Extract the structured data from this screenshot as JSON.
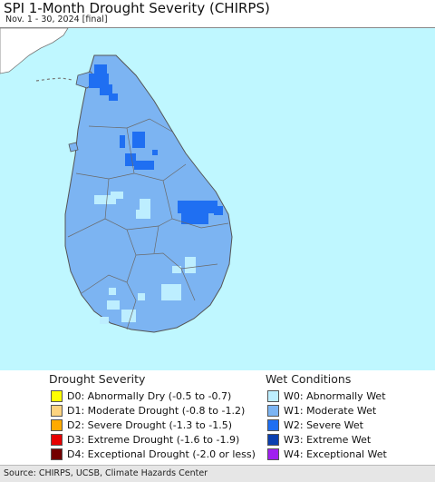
{
  "header": {
    "title": "SPI 1-Month Drought Severity (CHIRPS)",
    "subtitle": "Nov. 1 - 30, 2024 [final]"
  },
  "map": {
    "ocean_color": "#bff7ff",
    "neighbor_land_color": "#ffffff",
    "base_land_color": "#7cb4f2",
    "w0_color": "#bdeeff",
    "w2_color": "#1f6ff2",
    "border_color": "#666666"
  },
  "legend": {
    "drought": {
      "heading": "Drought Severity",
      "items": [
        {
          "label": "D0: Abnormally Dry (-0.5 to -0.7)",
          "color": "#ffff00"
        },
        {
          "label": "D1: Moderate Drought (-0.8 to -1.2)",
          "color": "#fcd37f"
        },
        {
          "label": "D2: Severe Drought (-1.3 to -1.5)",
          "color": "#ffaa00"
        },
        {
          "label": "D3: Extreme Drought (-1.6 to -1.9)",
          "color": "#e60000"
        },
        {
          "label": "D4: Exceptional Drought (-2.0 or less)",
          "color": "#730000"
        }
      ]
    },
    "wet": {
      "heading": "Wet Conditions",
      "items": [
        {
          "label": "W0: Abnormally Wet",
          "color": "#bdeeff"
        },
        {
          "label": "W1: Moderate Wet",
          "color": "#7cb4f2"
        },
        {
          "label": "W2: Severe Wet",
          "color": "#1f6ff2"
        },
        {
          "label": "W3: Extreme Wet",
          "color": "#0a3fb0"
        },
        {
          "label": "W4: Exceptional Wet",
          "color": "#a020f0"
        }
      ]
    }
  },
  "footer": {
    "source": "Source: CHIRPS, UCSB, Climate Hazards Center"
  }
}
